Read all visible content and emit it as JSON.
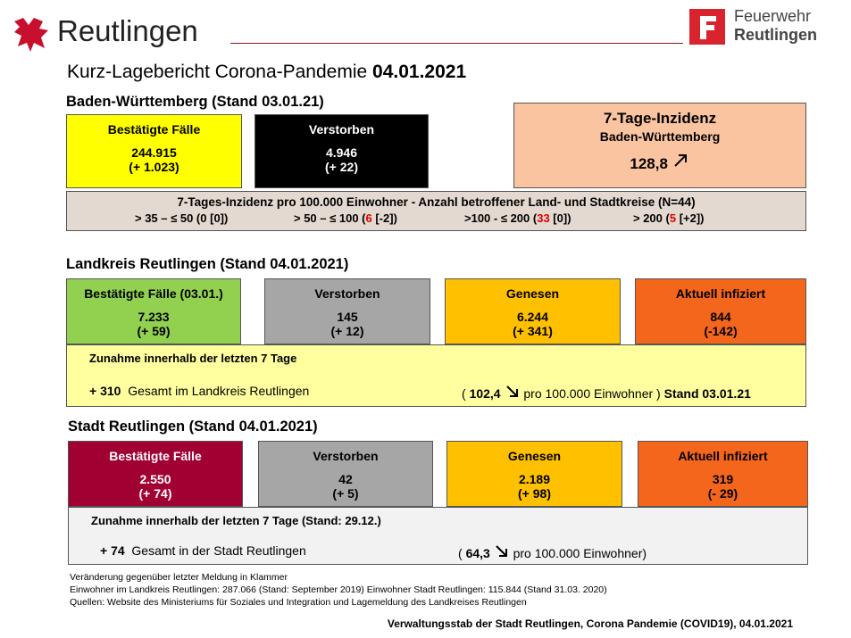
{
  "header": {
    "brand": "Reutlingen",
    "fire_dept": [
      "Feuerwehr",
      "Reutlingen"
    ],
    "title": "Kurz-Lagebericht Corona-Pandemie",
    "date": "04.01.2021"
  },
  "bw": {
    "heading": "Baden-Württemberg (Stand 03.01.21)",
    "boxes": [
      {
        "label": "Bestätigte Fälle",
        "value": "244.915",
        "change": "(+ 1.023)"
      },
      {
        "label": "Verstorben",
        "value": "4.946",
        "change": "(+ 22)"
      }
    ],
    "incidence": {
      "title": "7-Tage-Inzidenz",
      "subtitle": "Baden-Württemberg",
      "value": "128,8"
    },
    "districts": {
      "title": "7-Tages-Inzidenz pro 100.000 Einwohner  - Anzahl betroffener Land- und Stadtkreise (N=44)",
      "groups": [
        {
          "range": "> 35 – ≤ 50 (",
          "count": "0",
          "rest": " [0])"
        },
        {
          "range": "> 50 – ≤ 100 (",
          "count": "6",
          "rest": " [-2])"
        },
        {
          "range": ">100 - ≤ 200 (",
          "count": "33",
          "rest": " [0])"
        },
        {
          "range": "> 200 (",
          "count": "5",
          "rest": " [+2])"
        }
      ]
    }
  },
  "landkreis": {
    "heading": "Landkreis Reutlingen (Stand 04.01.2021)",
    "boxes": [
      {
        "label": "Bestätigte Fälle (03.01.)",
        "value": "7.233",
        "change": "(+ 59)"
      },
      {
        "label": "Verstorben",
        "value": "145",
        "change": "(+ 12)"
      },
      {
        "label": "Genesen",
        "value": "6.244",
        "change": "(+ 341)"
      },
      {
        "label": "Aktuell infiziert",
        "value": "844",
        "change": "(-142)"
      }
    ],
    "increase": {
      "title": "Zunahme innerhalb der letzten 7 Tage",
      "amount": "+ 310",
      "text": "Gesamt im Landkreis Reutlingen",
      "open": "(",
      "incidence": "102,4",
      "per": "pro 100.000 Einwohner )",
      "stand": "Stand 03.01.21"
    }
  },
  "stadt": {
    "heading": "Stadt Reutlingen (Stand 04.01.2021)",
    "boxes": [
      {
        "label": "Bestätigte Fälle",
        "value": "2.550",
        "change": "(+ 74)"
      },
      {
        "label": "Verstorben",
        "value": "42",
        "change": "(+ 5)"
      },
      {
        "label": "Genesen",
        "value": "2.189",
        "change": "(+ 98)"
      },
      {
        "label": "Aktuell infiziert",
        "value": "319",
        "change": "(- 29)"
      }
    ],
    "increase": {
      "title": "Zunahme innerhalb der letzten 7 Tage (Stand: 29.12.)",
      "amount": "+ 74",
      "text": "Gesamt in der Stadt Reutlingen",
      "open": "(",
      "incidence": "64,3",
      "per": "pro 100.000 Einwohner)"
    }
  },
  "notes": [
    "Veränderung gegenüber letzter Meldung in Klammer",
    "Einwohner im Landkreis Reutlingen: 287.066 (Stand: September 2019) Einwohner Stadt Reutlingen: 115.844 (Stand 31.03. 2020)",
    "Quellen: Website des Ministeriums für Soziales und Integration und Lagemeldung des Landkreises Reutlingen"
  ],
  "credit": "Verwaltungsstab der Stadt Reutlingen, Corona Pandemie (COVID19), 04.01.2021"
}
